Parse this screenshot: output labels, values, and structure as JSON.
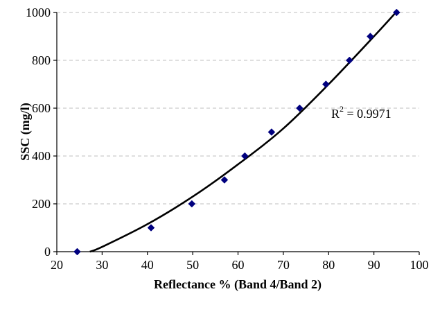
{
  "chart_data": {
    "type": "scatter",
    "xlabel": "Reflectance % (Band 4/Band 2)",
    "ylabel": "SSC (mg/l)",
    "xlim": [
      20,
      100
    ],
    "ylim": [
      0,
      1000
    ],
    "xticks": [
      "20",
      "30",
      "40",
      "50",
      "60",
      "70",
      "80",
      "90",
      "100"
    ],
    "yticks": [
      "0",
      "200",
      "400",
      "600",
      "800",
      "1000"
    ],
    "grid": "horizontal dashed",
    "points": [
      {
        "x": 24.5,
        "y": 0
      },
      {
        "x": 40.8,
        "y": 100
      },
      {
        "x": 49.8,
        "y": 200
      },
      {
        "x": 57.0,
        "y": 300
      },
      {
        "x": 61.5,
        "y": 400
      },
      {
        "x": 67.4,
        "y": 500
      },
      {
        "x": 73.6,
        "y": 600
      },
      {
        "x": 79.4,
        "y": 700
      },
      {
        "x": 84.6,
        "y": 800
      },
      {
        "x": 89.2,
        "y": 900
      },
      {
        "x": 95.0,
        "y": 1000
      }
    ],
    "trendline": {
      "type": "polynomial",
      "points": [
        {
          "x": 27.3,
          "y": 0
        },
        {
          "x": 30,
          "y": 20
        },
        {
          "x": 40,
          "y": 115
        },
        {
          "x": 50,
          "y": 230
        },
        {
          "x": 60,
          "y": 365
        },
        {
          "x": 70,
          "y": 515
        },
        {
          "x": 80,
          "y": 700
        },
        {
          "x": 90,
          "y": 900
        },
        {
          "x": 95.3,
          "y": 1010
        }
      ]
    },
    "annotation": {
      "base": "R",
      "sup": "2",
      "rest": " = 0.9971"
    },
    "marker_color": "#00007f",
    "line_color": "#000000",
    "grid_color": "#bfbfbf"
  }
}
